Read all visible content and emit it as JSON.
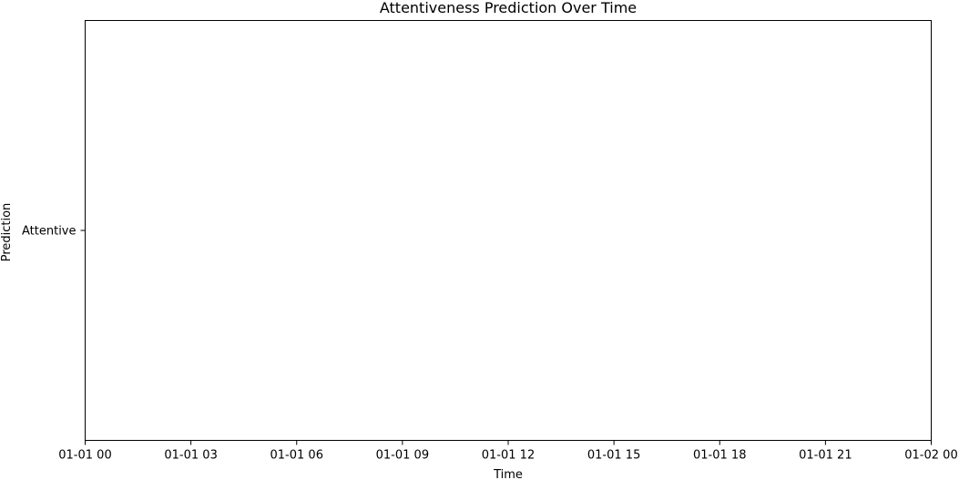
{
  "chart_data": {
    "type": "line",
    "title": "Attentiveness Prediction Over Time",
    "xlabel": "Time",
    "ylabel": "Prediction",
    "x_ticks": [
      "01-01 00",
      "01-01 03",
      "01-01 06",
      "01-01 09",
      "01-01 12",
      "01-01 15",
      "01-01 18",
      "01-01 21",
      "01-02 00"
    ],
    "y_categories": [
      "Attentive"
    ],
    "xlim": [
      "01-01 00",
      "01-02 00"
    ],
    "series": [],
    "grid": false
  }
}
